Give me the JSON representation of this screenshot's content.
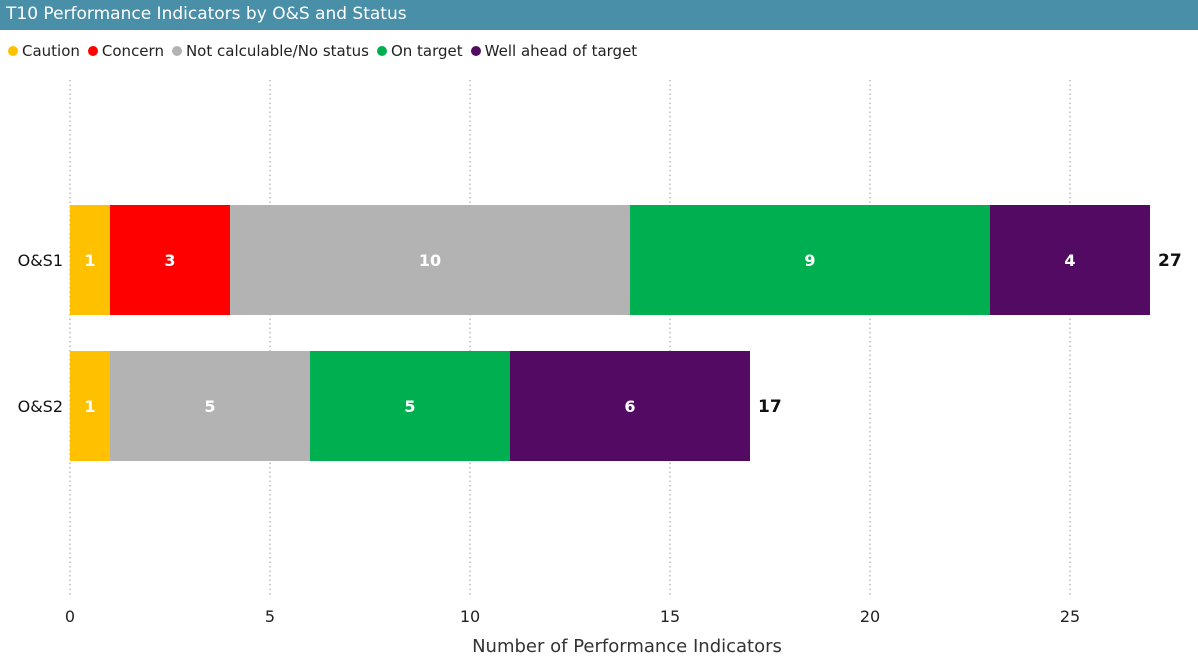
{
  "title": "T10 Performance Indicators by O&S and Status",
  "colors": {
    "title_bar": "#4a8fa8"
  },
  "chart_data": {
    "type": "bar",
    "orientation": "horizontal",
    "stacked": true,
    "categories": [
      "O&S1",
      "O&S2"
    ],
    "series": [
      {
        "name": "Caution",
        "color": "#FFC000",
        "values": [
          1,
          1
        ]
      },
      {
        "name": "Concern",
        "color": "#FF0000",
        "values": [
          3,
          0
        ]
      },
      {
        "name": "Not calculable/No status",
        "color": "#B3B3B3",
        "values": [
          10,
          5
        ]
      },
      {
        "name": "On target",
        "color": "#00B050",
        "values": [
          9,
          5
        ]
      },
      {
        "name": "Well ahead of target",
        "color": "#520A63",
        "values": [
          4,
          6
        ]
      }
    ],
    "totals": [
      27,
      17
    ],
    "xlabel": "Number of Performance Indicators",
    "xlim": [
      0,
      28
    ],
    "xticks": [
      0,
      5,
      10,
      15,
      20,
      25
    ],
    "grid": "vertical dotted",
    "legend": "top-left"
  }
}
